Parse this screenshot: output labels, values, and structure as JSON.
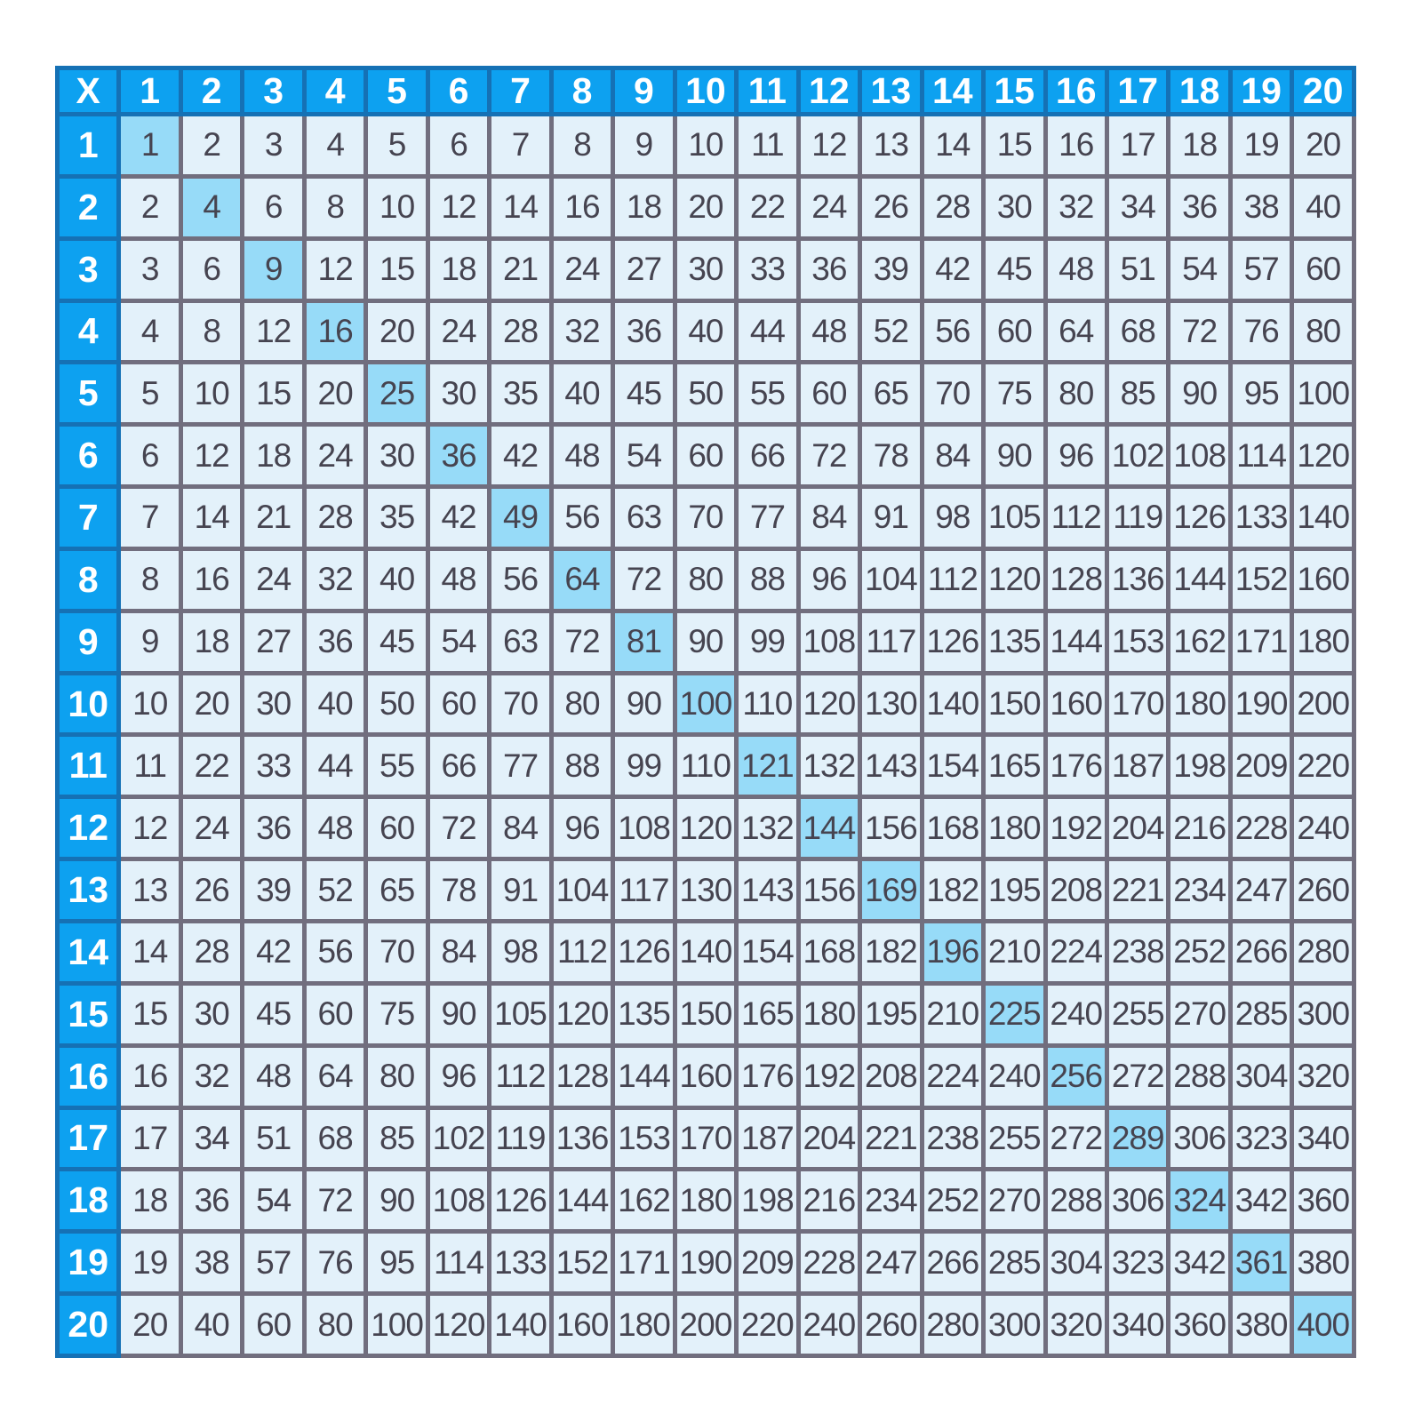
{
  "table": {
    "corner_label": "X",
    "column_headers": [
      "1",
      "2",
      "3",
      "4",
      "5",
      "6",
      "7",
      "8",
      "9",
      "10",
      "11",
      "12",
      "13",
      "14",
      "15",
      "16",
      "17",
      "18",
      "19",
      "20"
    ],
    "row_headers": [
      "1",
      "2",
      "3",
      "4",
      "5",
      "6",
      "7",
      "8",
      "9",
      "10",
      "11",
      "12",
      "13",
      "14",
      "15",
      "16",
      "17",
      "18",
      "19",
      "20"
    ],
    "cells": [
      [
        1,
        2,
        3,
        4,
        5,
        6,
        7,
        8,
        9,
        10,
        11,
        12,
        13,
        14,
        15,
        16,
        17,
        18,
        19,
        20
      ],
      [
        2,
        4,
        6,
        8,
        10,
        12,
        14,
        16,
        18,
        20,
        22,
        24,
        26,
        28,
        30,
        32,
        34,
        36,
        38,
        40
      ],
      [
        3,
        6,
        9,
        12,
        15,
        18,
        21,
        24,
        27,
        30,
        33,
        36,
        39,
        42,
        45,
        48,
        51,
        54,
        57,
        60
      ],
      [
        4,
        8,
        12,
        16,
        20,
        24,
        28,
        32,
        36,
        40,
        44,
        48,
        52,
        56,
        60,
        64,
        68,
        72,
        76,
        80
      ],
      [
        5,
        10,
        15,
        20,
        25,
        30,
        35,
        40,
        45,
        50,
        55,
        60,
        65,
        70,
        75,
        80,
        85,
        90,
        95,
        100
      ],
      [
        6,
        12,
        18,
        24,
        30,
        36,
        42,
        48,
        54,
        60,
        66,
        72,
        78,
        84,
        90,
        96,
        102,
        108,
        114,
        120
      ],
      [
        7,
        14,
        21,
        28,
        35,
        42,
        49,
        56,
        63,
        70,
        77,
        84,
        91,
        98,
        105,
        112,
        119,
        126,
        133,
        140
      ],
      [
        8,
        16,
        24,
        32,
        40,
        48,
        56,
        64,
        72,
        80,
        88,
        96,
        104,
        112,
        120,
        128,
        136,
        144,
        152,
        160
      ],
      [
        9,
        18,
        27,
        36,
        45,
        54,
        63,
        72,
        81,
        90,
        99,
        108,
        117,
        126,
        135,
        144,
        153,
        162,
        171,
        180
      ],
      [
        10,
        20,
        30,
        40,
        50,
        60,
        70,
        80,
        90,
        100,
        110,
        120,
        130,
        140,
        150,
        160,
        170,
        180,
        190,
        200
      ],
      [
        11,
        22,
        33,
        44,
        55,
        66,
        77,
        88,
        99,
        110,
        121,
        132,
        143,
        154,
        165,
        176,
        187,
        198,
        209,
        220
      ],
      [
        12,
        24,
        36,
        48,
        60,
        72,
        84,
        96,
        108,
        120,
        132,
        144,
        156,
        168,
        180,
        192,
        204,
        216,
        228,
        240
      ],
      [
        13,
        26,
        39,
        52,
        65,
        78,
        91,
        104,
        117,
        130,
        143,
        156,
        169,
        182,
        195,
        208,
        221,
        234,
        247,
        260
      ],
      [
        14,
        28,
        42,
        56,
        70,
        84,
        98,
        112,
        126,
        140,
        154,
        168,
        182,
        196,
        210,
        224,
        238,
        252,
        266,
        280
      ],
      [
        15,
        30,
        45,
        60,
        75,
        90,
        105,
        120,
        135,
        150,
        165,
        180,
        195,
        210,
        225,
        240,
        255,
        270,
        285,
        300
      ],
      [
        16,
        32,
        48,
        64,
        80,
        96,
        112,
        128,
        144,
        160,
        176,
        192,
        208,
        224,
        240,
        256,
        272,
        288,
        304,
        320
      ],
      [
        17,
        34,
        51,
        68,
        85,
        102,
        119,
        136,
        153,
        170,
        187,
        204,
        221,
        238,
        255,
        272,
        289,
        306,
        323,
        340
      ],
      [
        18,
        36,
        54,
        72,
        90,
        108,
        126,
        144,
        162,
        180,
        198,
        216,
        234,
        252,
        270,
        288,
        306,
        324,
        342,
        360
      ],
      [
        19,
        38,
        57,
        76,
        95,
        114,
        133,
        152,
        171,
        190,
        209,
        228,
        247,
        266,
        285,
        304,
        323,
        342,
        361,
        380
      ],
      [
        20,
        40,
        60,
        80,
        100,
        120,
        140,
        160,
        180,
        200,
        220,
        240,
        260,
        280,
        300,
        320,
        340,
        360,
        380,
        400
      ]
    ],
    "highlight_diagonal": true,
    "colors": {
      "header_bg": "#0da1f0",
      "header_border": "#1571b5",
      "header_text": "#ffffff",
      "cell_bg": "#e3f1fa",
      "cell_border": "#716e7e",
      "cell_text": "#464450",
      "diagonal_bg": "#97dbf8",
      "page_bg": "#ffffff"
    }
  }
}
